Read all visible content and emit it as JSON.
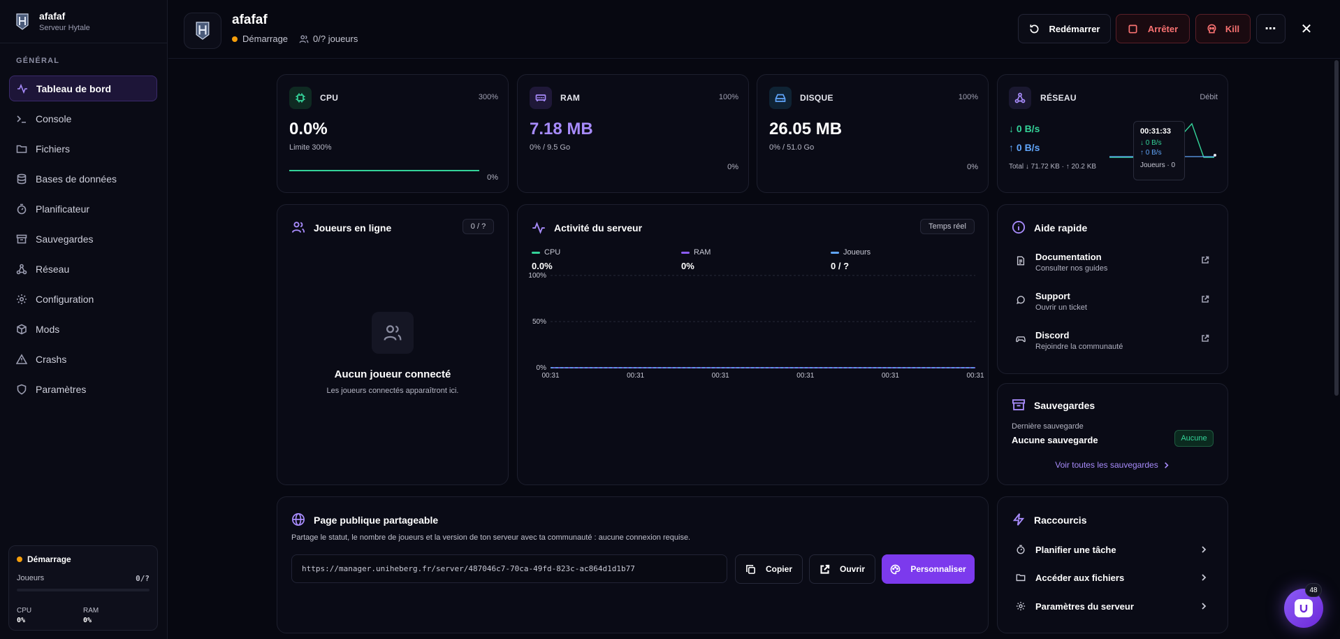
{
  "sidebar": {
    "brand_name": "afafaf",
    "brand_sub": "Serveur Hytale",
    "section": "GÉNÉRAL",
    "items": [
      {
        "label": "Tableau de bord",
        "icon": "activity-icon"
      },
      {
        "label": "Console",
        "icon": "terminal-icon"
      },
      {
        "label": "Fichiers",
        "icon": "folder-icon"
      },
      {
        "label": "Bases de données",
        "icon": "database-icon"
      },
      {
        "label": "Planificateur",
        "icon": "timer-icon"
      },
      {
        "label": "Sauvegardes",
        "icon": "archive-icon"
      },
      {
        "label": "Réseau",
        "icon": "network-icon"
      },
      {
        "label": "Configuration",
        "icon": "gear-icon"
      },
      {
        "label": "Mods",
        "icon": "package-icon"
      },
      {
        "label": "Crashs",
        "icon": "warning-icon"
      },
      {
        "label": "Paramètres",
        "icon": "shield-icon"
      }
    ],
    "status": {
      "state": "Démarrage",
      "players_label": "Joueurs",
      "players_value": "0/?",
      "cpu_label": "CPU",
      "cpu_value": "0%",
      "ram_label": "RAM",
      "ram_value": "0%"
    }
  },
  "header": {
    "title": "afafaf",
    "state": "Démarrage",
    "players": "0/? joueurs",
    "restart": "Redémarrer",
    "stop": "Arrêter",
    "kill": "Kill",
    "more": "⋯",
    "close": "✕"
  },
  "metrics": {
    "cpu": {
      "label": "CPU",
      "max": "300%",
      "value": "0.0%",
      "sub": "Limite 300%",
      "pct": "0%",
      "fill": 1.0
    },
    "ram": {
      "label": "RAM",
      "max": "100%",
      "value": "7.18 MB",
      "sub": "0% / 9.5 Go",
      "pct": "0%",
      "fill": 0.0
    },
    "disk": {
      "label": "DISQUE",
      "max": "100%",
      "value": "26.05 MB",
      "sub": "0% / 51.0 Go",
      "pct": "0%",
      "fill": 0.0
    },
    "network": {
      "label": "RÉSEAU",
      "right": "Débit",
      "down": "↓ 0 B/s",
      "up": "↑ 0 B/s",
      "total": "Total ↓ 71.72 KB · ↑ 20.2 KB",
      "tooltip": {
        "time": "00:31:33",
        "down": "↓ 0 B/s",
        "up": "↑ 0 B/s",
        "players": "Joueurs · 0"
      }
    }
  },
  "players_card": {
    "title": "Joueurs en ligne",
    "count": "0 / ?",
    "empty_title": "Aucun joueur connecté",
    "empty_sub": "Les joueurs connectés apparaîtront ici."
  },
  "activity": {
    "title": "Activité du serveur",
    "badge": "Temps réel",
    "legend": [
      {
        "name": "CPU",
        "value": "0.0%",
        "color": "#34d399"
      },
      {
        "name": "RAM",
        "value": "0%",
        "color": "#8b5cf6"
      },
      {
        "name": "Joueurs",
        "value": "0 / ?",
        "color": "#60a5fa"
      }
    ]
  },
  "chart_data": {
    "type": "line",
    "title": "",
    "xlabel": "",
    "ylabel": "",
    "x": [
      "00:31",
      "00:31",
      "00:31",
      "00:31",
      "00:31",
      "00:31"
    ],
    "ytick_labels": [
      "100%",
      "50%",
      "0%"
    ],
    "ylim": [
      0,
      100
    ],
    "grid": true,
    "legend": "top",
    "series": [
      {
        "name": "CPU",
        "values": [
          0,
          0,
          0,
          0,
          0,
          0
        ],
        "color": "#34d399"
      },
      {
        "name": "RAM",
        "values": [
          0,
          0,
          0,
          0,
          0,
          0
        ],
        "color": "#8b5cf6"
      },
      {
        "name": "Joueurs",
        "values": [
          0,
          0,
          0,
          0,
          0,
          0
        ],
        "color": "#60a5fa"
      }
    ]
  },
  "help": {
    "title": "Aide rapide",
    "items": [
      {
        "title": "Documentation",
        "sub": "Consulter nos guides"
      },
      {
        "title": "Support",
        "sub": "Ouvrir un ticket"
      },
      {
        "title": "Discord",
        "sub": "Rejoindre la communauté"
      }
    ]
  },
  "backups": {
    "title": "Sauvegardes",
    "last_label": "Dernière sauvegarde",
    "last_value": "Aucune sauvegarde",
    "badge": "Aucune",
    "link": "Voir toutes les sauvegardes"
  },
  "public_page": {
    "title": "Page publique partageable",
    "desc": "Partage le statut, le nombre de joueurs et la version de ton serveur avec ta communauté : aucune connexion requise.",
    "url": "https://manager.uniheberg.fr/server/487046c7-70ca-49fd-823c-ac864d1d1b77",
    "copy": "Copier",
    "open": "Ouvrir",
    "customize": "Personnaliser"
  },
  "shortcuts": {
    "title": "Raccourcis",
    "items": [
      {
        "label": "Planifier une tâche"
      },
      {
        "label": "Accéder aux fichiers"
      },
      {
        "label": "Paramètres du serveur"
      }
    ]
  },
  "fab": {
    "badge": "48"
  },
  "colors": {
    "accent": "#8b5cf6",
    "cpu": "#34d399",
    "danger": "#f87171",
    "warning": "#f59e0b"
  }
}
